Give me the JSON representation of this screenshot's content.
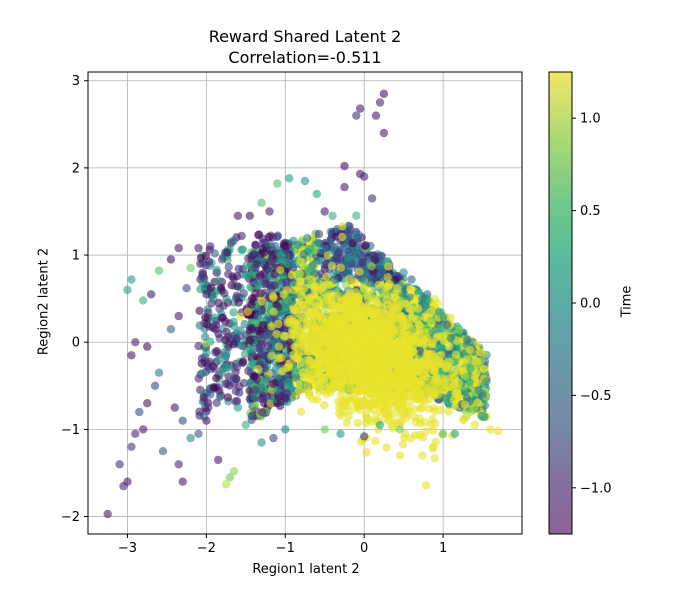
{
  "chart_data": {
    "type": "scatter",
    "title": "Reward Shared Latent 2",
    "subtitle": "Correlation=-0.511",
    "xlabel": "Region1 latent 2",
    "ylabel": "Region2 latent 2",
    "xlim": [
      -3.5,
      2.0
    ],
    "ylim": [
      -2.2,
      3.1
    ],
    "xticks": [
      -3,
      -2,
      -1,
      0,
      1
    ],
    "yticks": [
      -2,
      -1,
      0,
      1,
      2,
      3
    ],
    "grid": true,
    "colorbar": {
      "label": "Time",
      "range": [
        -1.25,
        1.25
      ],
      "ticks": [
        -1.0,
        -0.5,
        0.0,
        0.5,
        1.0
      ],
      "colormap": "viridis",
      "alpha": 0.6
    },
    "points": [
      {
        "x": -3.25,
        "y": -1.97,
        "t": -1.0
      },
      {
        "x": -3.05,
        "y": -1.65,
        "t": -0.9
      },
      {
        "x": -3.0,
        "y": -1.6,
        "t": -1.0
      },
      {
        "x": -3.1,
        "y": -1.4,
        "t": -0.8
      },
      {
        "x": -2.95,
        "y": -1.2,
        "t": -0.7
      },
      {
        "x": -2.9,
        "y": -1.05,
        "t": -0.9
      },
      {
        "x": -2.8,
        "y": -1.0,
        "t": -1.0
      },
      {
        "x": -2.85,
        "y": -0.8,
        "t": -0.5
      },
      {
        "x": -2.75,
        "y": -0.7,
        "t": -1.0
      },
      {
        "x": -2.65,
        "y": -0.5,
        "t": -0.6
      },
      {
        "x": -2.6,
        "y": -0.35,
        "t": 0.1
      },
      {
        "x": -2.95,
        "y": -0.15,
        "t": -1.0
      },
      {
        "x": -2.75,
        "y": -0.05,
        "t": -1.1
      },
      {
        "x": -2.9,
        "y": 0.0,
        "t": -0.9
      },
      {
        "x": -2.45,
        "y": 0.15,
        "t": -0.2
      },
      {
        "x": -2.35,
        "y": 0.3,
        "t": -1.0
      },
      {
        "x": -3.0,
        "y": 0.6,
        "t": 0.6
      },
      {
        "x": -2.8,
        "y": 0.48,
        "t": 0.7
      },
      {
        "x": -2.95,
        "y": 0.72,
        "t": 0.5
      },
      {
        "x": -2.7,
        "y": 0.55,
        "t": -1.0
      },
      {
        "x": -2.6,
        "y": 0.82,
        "t": 0.8
      },
      {
        "x": -2.45,
        "y": 0.95,
        "t": -1.1
      },
      {
        "x": -2.35,
        "y": 1.08,
        "t": -1.0
      },
      {
        "x": -2.25,
        "y": 0.62,
        "t": -0.6
      },
      {
        "x": -2.2,
        "y": 0.85,
        "t": 0.9
      },
      {
        "x": -2.1,
        "y": 1.08,
        "t": -1.0
      },
      {
        "x": -2.0,
        "y": 0.55,
        "t": -1.1
      },
      {
        "x": -1.95,
        "y": 1.1,
        "t": -0.9
      },
      {
        "x": -1.8,
        "y": 0.95,
        "t": -0.8
      },
      {
        "x": -2.4,
        "y": -0.75,
        "t": -1.0
      },
      {
        "x": -2.3,
        "y": -0.9,
        "t": -0.5
      },
      {
        "x": -2.2,
        "y": -1.1,
        "t": 0.3
      },
      {
        "x": -2.1,
        "y": -1.05,
        "t": -0.4
      },
      {
        "x": -2.55,
        "y": -1.25,
        "t": -0.3
      },
      {
        "x": -2.35,
        "y": -1.4,
        "t": -0.9
      },
      {
        "x": -2.3,
        "y": -1.6,
        "t": -1.0
      },
      {
        "x": -1.85,
        "y": -1.35,
        "t": -1.0
      },
      {
        "x": -1.7,
        "y": -1.55,
        "t": 0.9
      },
      {
        "x": -1.65,
        "y": -1.48,
        "t": 1.0
      },
      {
        "x": -1.75,
        "y": -1.63,
        "t": 1.1
      },
      {
        "x": -2.0,
        "y": -0.9,
        "t": -1.1
      },
      {
        "x": -1.95,
        "y": -0.6,
        "t": -0.4
      },
      {
        "x": -1.6,
        "y": -0.75,
        "t": 0.5
      },
      {
        "x": -1.5,
        "y": -0.95,
        "t": 0.7
      },
      {
        "x": -1.3,
        "y": -1.15,
        "t": 0.4
      },
      {
        "x": -1.15,
        "y": -1.1,
        "t": -0.6
      },
      {
        "x": -1.0,
        "y": -1.0,
        "t": 0.2
      },
      {
        "x": -0.5,
        "y": -1.0,
        "t": 0.9
      },
      {
        "x": -0.3,
        "y": -1.05,
        "t": 0.4
      },
      {
        "x": 0.0,
        "y": -1.08,
        "t": -0.7
      },
      {
        "x": 0.2,
        "y": -0.95,
        "t": 0.6
      },
      {
        "x": 0.45,
        "y": -1.0,
        "t": 0.9
      },
      {
        "x": 0.15,
        "y": 2.6,
        "t": -1.0
      },
      {
        "x": 0.25,
        "y": 2.85,
        "t": -1.1
      },
      {
        "x": 0.2,
        "y": 2.75,
        "t": -0.9
      },
      {
        "x": -0.05,
        "y": 2.68,
        "t": -1.0
      },
      {
        "x": -0.1,
        "y": 2.6,
        "t": -0.8
      },
      {
        "x": 0.25,
        "y": 2.4,
        "t": -1.0
      },
      {
        "x": -0.25,
        "y": 2.02,
        "t": -1.1
      },
      {
        "x": -0.05,
        "y": 1.93,
        "t": -1.0
      },
      {
        "x": 0.0,
        "y": 1.9,
        "t": -0.9
      },
      {
        "x": -0.25,
        "y": 1.78,
        "t": -1.0
      },
      {
        "x": 0.1,
        "y": 1.65,
        "t": -0.8
      },
      {
        "x": -0.1,
        "y": 1.45,
        "t": 0.7
      },
      {
        "x": -0.95,
        "y": 1.88,
        "t": 0.6
      },
      {
        "x": -1.1,
        "y": 1.82,
        "t": 0.8
      },
      {
        "x": -0.75,
        "y": 1.85,
        "t": 0.4
      },
      {
        "x": -0.6,
        "y": 1.7,
        "t": 0.6
      },
      {
        "x": -0.5,
        "y": 1.5,
        "t": -0.9
      },
      {
        "x": -0.4,
        "y": 1.45,
        "t": 0.7
      },
      {
        "x": -1.3,
        "y": 1.6,
        "t": 0.8
      },
      {
        "x": -1.2,
        "y": 1.5,
        "t": -1.0
      },
      {
        "x": -1.45,
        "y": 1.45,
        "t": -1.1
      },
      {
        "x": -1.6,
        "y": 1.45,
        "t": -1.0
      },
      {
        "x": 1.6,
        "y": -1.0,
        "t": 1.2
      },
      {
        "x": 1.7,
        "y": -1.02,
        "t": 1.2
      },
      {
        "x": 1.4,
        "y": -0.95,
        "t": 1.2
      },
      {
        "x": 1.3,
        "y": -0.85,
        "t": 1.1
      },
      {
        "x": 1.15,
        "y": -1.05,
        "t": 0.6
      },
      {
        "x": 1.0,
        "y": -1.05,
        "t": 0.8
      },
      {
        "x": 1.55,
        "y": -0.45,
        "t": 0.2
      },
      {
        "x": 1.45,
        "y": -0.55,
        "t": 0.4
      },
      {
        "x": 1.35,
        "y": -0.3,
        "t": 0.6
      },
      {
        "x": 1.1,
        "y": 0.05,
        "t": 0.3
      },
      {
        "x": 1.05,
        "y": 0.2,
        "t": -0.3
      },
      {
        "x": 0.95,
        "y": 0.35,
        "t": 0.5
      },
      {
        "x": 0.85,
        "y": 0.25,
        "t": 1.0
      },
      {
        "x": 0.8,
        "y": 0.55,
        "t": -0.1
      },
      {
        "x": 0.6,
        "y": 0.72,
        "t": -0.3
      },
      {
        "x": 0.5,
        "y": 0.8,
        "t": 0.2
      }
    ]
  }
}
